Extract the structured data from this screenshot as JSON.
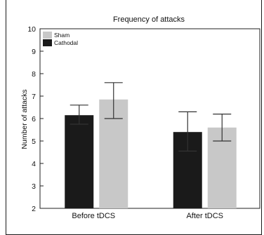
{
  "chart_data": {
    "type": "bar",
    "title": "Frequency of attacks",
    "xlabel": "",
    "ylabel": "Number of attacks",
    "categories": [
      "Before tDCS",
      "After tDCS"
    ],
    "ylim": [
      2,
      10
    ],
    "yticks": [
      2,
      3,
      4,
      5,
      6,
      7,
      8,
      9,
      10
    ],
    "series": [
      {
        "name": "Cathodal",
        "color": "#1a1a1a",
        "values": [
          6.15,
          5.4
        ],
        "err_low": [
          5.75,
          4.55
        ],
        "err_high": [
          6.6,
          6.3
        ]
      },
      {
        "name": "Sham",
        "color": "#c8c8c8",
        "values": [
          6.85,
          5.6
        ],
        "err_low": [
          6.0,
          5.0
        ],
        "err_high": [
          7.6,
          6.2
        ]
      }
    ],
    "legend": {
      "placement": "top-left",
      "order": [
        "Sham",
        "Cathodal"
      ]
    },
    "grid": false
  }
}
